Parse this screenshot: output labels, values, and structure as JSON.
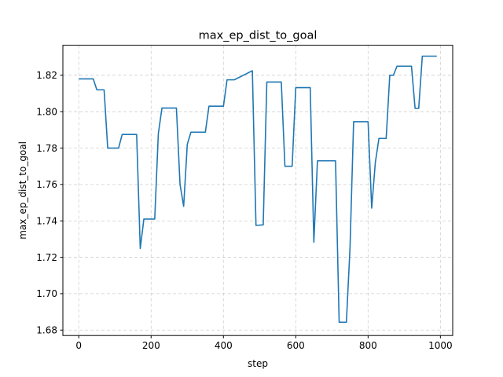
{
  "chart_data": {
    "type": "line",
    "title": "max_ep_dist_to_goal",
    "xlabel": "step",
    "ylabel": "max_ep_dist_to_goal",
    "xlim": [
      -44,
      1034
    ],
    "ylim": [
      1.677,
      1.8365
    ],
    "xticks": [
      0,
      200,
      400,
      600,
      800,
      1000
    ],
    "xtick_labels": [
      "0",
      "200",
      "400",
      "600",
      "800",
      "1000"
    ],
    "yticks": [
      1.68,
      1.7,
      1.72,
      1.74,
      1.76,
      1.78,
      1.8,
      1.82
    ],
    "ytick_labels": [
      "1.68",
      "1.70",
      "1.72",
      "1.74",
      "1.76",
      "1.78",
      "1.80",
      "1.82"
    ],
    "grid": true,
    "color": "#1f77b4",
    "series": [
      {
        "x": [
          0,
          40,
          50,
          70,
          80,
          110,
          120,
          160,
          170,
          180,
          210,
          220,
          230,
          270,
          280,
          290,
          300,
          310,
          350,
          360,
          400,
          410,
          430,
          480,
          490,
          510,
          520,
          560,
          570,
          590,
          600,
          640,
          650,
          660,
          670,
          710,
          720,
          740,
          750,
          760,
          800,
          810,
          820,
          830,
          850,
          860,
          870,
          880,
          920,
          930,
          940,
          950,
          990
        ],
        "y": [
          1.818,
          1.818,
          1.812,
          1.812,
          1.78,
          1.78,
          1.7875,
          1.7875,
          1.7248,
          1.741,
          1.741,
          1.788,
          1.802,
          1.802,
          1.76,
          1.748,
          1.782,
          1.7887,
          1.7887,
          1.803,
          1.803,
          1.8175,
          1.8175,
          1.8225,
          1.7375,
          1.7378,
          1.8163,
          1.8163,
          1.77,
          1.77,
          1.8132,
          1.8132,
          1.7283,
          1.773,
          1.773,
          1.773,
          1.6843,
          1.6843,
          1.725,
          1.7945,
          1.7945,
          1.747,
          1.772,
          1.7853,
          1.7853,
          1.82,
          1.82,
          1.825,
          1.825,
          1.8018,
          1.8018,
          1.8305,
          1.8305
        ]
      }
    ]
  }
}
